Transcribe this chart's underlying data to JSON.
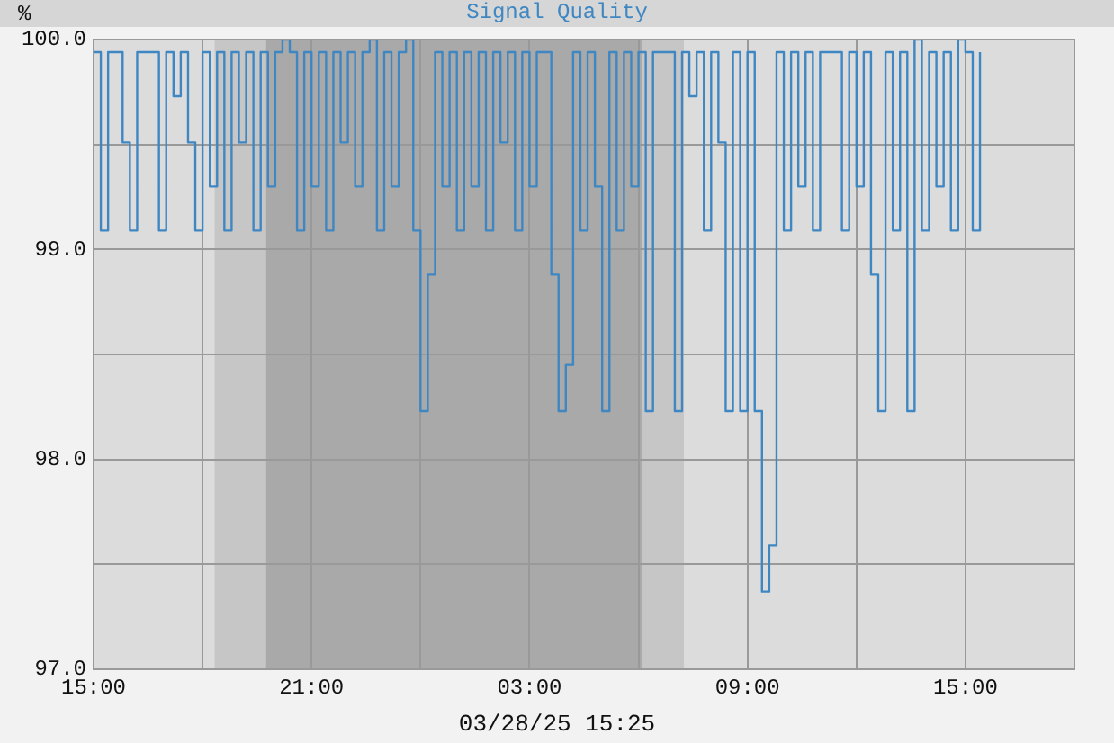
{
  "chart_data": {
    "type": "step",
    "title": "Signal Quality",
    "ylabel": "%",
    "xlabel": "03/28/25 15:25",
    "x": [
      "--03-27T15:00",
      "--03-27T15:12",
      "--03-27T15:24",
      "--03-27T15:36",
      "--03-27T15:48",
      "--03-27T16:00",
      "--03-27T16:12",
      "--03-27T16:24",
      "--03-27T16:36",
      "--03-27T16:48",
      "--03-27T17:00",
      "--03-27T17:12",
      "--03-27T17:24",
      "--03-27T17:36",
      "--03-27T17:48",
      "--03-27T18:00",
      "--03-27T18:12",
      "--03-27T18:24",
      "--03-27T18:36",
      "--03-27T18:48",
      "--03-27T19:00",
      "--03-27T19:12",
      "--03-27T19:24",
      "--03-27T19:36",
      "--03-27T19:48",
      "--03-27T20:00",
      "--03-27T20:12",
      "--03-27T20:24",
      "--03-27T20:36",
      "--03-27T20:48",
      "--03-27T21:00",
      "--03-27T21:12",
      "--03-27T21:24",
      "--03-27T21:36",
      "--03-27T21:48",
      "--03-27T22:00",
      "--03-27T22:12",
      "--03-27T22:24",
      "--03-27T22:36",
      "--03-27T22:48",
      "--03-27T23:00",
      "--03-27T23:12",
      "--03-27T23:24",
      "--03-27T23:36",
      "--03-27T23:48",
      "--03-28T00:00",
      "--03-28T00:12",
      "--03-28T00:24",
      "--03-28T00:36",
      "--03-28T00:48",
      "--03-28T01:00",
      "--03-28T01:12",
      "--03-28T01:24",
      "--03-28T01:36",
      "--03-28T01:48",
      "--03-28T02:00",
      "--03-28T02:12",
      "--03-28T02:24",
      "--03-28T02:36",
      "--03-28T02:48",
      "--03-28T03:00",
      "--03-28T03:12",
      "--03-28T03:24",
      "--03-28T03:36",
      "--03-28T03:48",
      "--03-28T04:00",
      "--03-28T04:12",
      "--03-28T04:24",
      "--03-28T04:36",
      "--03-28T04:48",
      "--03-28T05:00",
      "--03-28T05:12",
      "--03-28T05:24",
      "--03-28T05:36",
      "--03-28T05:48",
      "--03-28T06:00",
      "--03-28T06:12",
      "--03-28T06:24",
      "--03-28T06:36",
      "--03-28T06:48",
      "--03-28T07:00",
      "--03-28T07:12",
      "--03-28T07:24",
      "--03-28T07:36",
      "--03-28T07:48",
      "--03-28T08:00",
      "--03-28T08:12",
      "--03-28T08:24",
      "--03-28T08:36",
      "--03-28T08:48",
      "--03-28T09:00",
      "--03-28T09:12",
      "--03-28T09:24",
      "--03-28T09:36",
      "--03-28T09:48",
      "--03-28T10:00",
      "--03-28T10:12",
      "--03-28T10:24",
      "--03-28T10:36",
      "--03-28T10:48",
      "--03-28T11:00",
      "--03-28T11:12",
      "--03-28T11:24",
      "--03-28T11:36",
      "--03-28T11:48",
      "--03-28T12:00",
      "--03-28T12:12",
      "--03-28T12:24",
      "--03-28T12:36",
      "--03-28T12:48",
      "--03-28T13:00",
      "--03-28T13:12",
      "--03-28T13:24",
      "--03-28T13:36",
      "--03-28T13:48",
      "--03-28T14:00",
      "--03-28T14:12",
      "--03-28T14:24",
      "--03-28T14:36",
      "--03-28T14:48",
      "--03-28T15:00",
      "--03-28T15:12",
      "--03-28T15:24"
    ],
    "series": [
      {
        "color": "#3f87c3",
        "values": [
          99.94,
          99.09,
          99.94,
          99.94,
          99.51,
          99.09,
          99.94,
          99.94,
          99.94,
          99.09,
          99.94,
          99.73,
          99.94,
          99.51,
          99.09,
          99.94,
          99.3,
          99.94,
          99.09,
          99.94,
          99.51,
          99.94,
          99.09,
          99.94,
          99.3,
          99.94,
          100,
          99.94,
          99.09,
          99.94,
          99.3,
          99.94,
          99.09,
          99.94,
          99.51,
          99.94,
          99.3,
          99.94,
          100,
          99.09,
          99.94,
          99.3,
          99.94,
          100,
          99.09,
          98.23,
          98.88,
          99.94,
          99.3,
          99.94,
          99.09,
          99.94,
          99.3,
          99.94,
          99.09,
          99.94,
          99.51,
          99.94,
          99.09,
          99.94,
          99.3,
          99.94,
          99.94,
          98.88,
          98.23,
          98.45,
          99.94,
          99.09,
          99.94,
          99.3,
          98.23,
          99.94,
          99.09,
          99.94,
          99.3,
          99.94,
          98.23,
          99.94,
          99.94,
          99.94,
          98.23,
          99.94,
          99.73,
          99.94,
          99.09,
          99.94,
          99.51,
          98.23,
          99.94,
          98.23,
          99.94,
          98.23,
          97.37,
          97.59,
          99.94,
          99.09,
          99.94,
          99.3,
          99.94,
          99.09,
          99.94,
          99.94,
          99.94,
          99.09,
          99.94,
          99.3,
          99.94,
          98.88,
          98.23,
          99.94,
          99.09,
          99.94,
          98.23,
          100,
          99.09,
          99.94,
          99.3,
          99.94,
          99.09,
          100,
          99.94,
          99.09,
          99.94
        ]
      }
    ],
    "xlim": [
      "--03-27T15:00",
      "--03-28T18:00"
    ],
    "xticks": [
      {
        "value": "--03-27T15:00",
        "label": "15:00"
      },
      {
        "value": "--03-27T18:00",
        "label": null
      },
      {
        "value": "--03-27T21:00",
        "label": "21:00"
      },
      {
        "value": "--03-28T00:00",
        "label": null
      },
      {
        "value": "--03-28T03:00",
        "label": "03:00"
      },
      {
        "value": "--03-28T06:00",
        "label": null
      },
      {
        "value": "--03-28T09:00",
        "label": "09:00"
      },
      {
        "value": "--03-28T12:00",
        "label": null
      },
      {
        "value": "--03-28T15:00",
        "label": "15:00"
      }
    ],
    "ylim": [
      97,
      100
    ],
    "yticks": [
      {
        "value": 97,
        "label": "97.0"
      },
      {
        "value": 97.5,
        "label": null
      },
      {
        "value": 98,
        "label": "98.0"
      },
      {
        "value": 98.5,
        "label": null
      },
      {
        "value": 99,
        "label": "99.0"
      },
      {
        "value": 99.5,
        "label": null
      },
      {
        "value": 100,
        "label": "100.0"
      }
    ],
    "bands": [
      {
        "axis": "x",
        "from": "--03-27T18:20",
        "to": "--03-28T07:15",
        "color": "#c6c6c6"
      },
      {
        "axis": "x",
        "from": "--03-27T19:45",
        "to": "--03-28T06:05",
        "color": "#a9a9a9"
      }
    ],
    "grid": true,
    "marker": "none",
    "line_style": "solid",
    "legend": false
  }
}
